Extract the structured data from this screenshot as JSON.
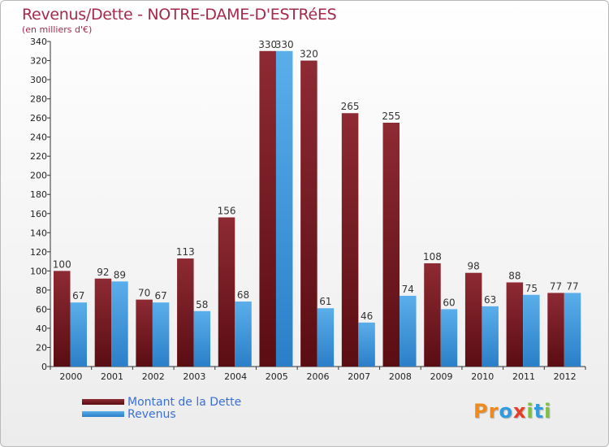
{
  "title": "Revenus/Dette - NOTRE-DAME-D'ESTRéES",
  "subtitle": "(en milliers d'€)",
  "colors": {
    "debt": "#7a1f26",
    "revenue": "#4a9fe0",
    "title": "#a5294b",
    "legend_text": "#3a6fd8"
  },
  "legend": {
    "debt_label": "Montant de la Dette",
    "revenue_label": "Revenus"
  },
  "logo": {
    "letters": [
      "P",
      "r",
      "o",
      "x",
      "i",
      "t",
      "i"
    ]
  },
  "chart_data": {
    "type": "bar",
    "title": "Revenus/Dette - NOTRE-DAME-D'ESTRéES",
    "ylabel": "(en milliers d'€)",
    "categories": [
      "2000",
      "2001",
      "2002",
      "2003",
      "2004",
      "2005",
      "2006",
      "2007",
      "2008",
      "2009",
      "2010",
      "2011",
      "2012"
    ],
    "series": [
      {
        "name": "Montant de la Dette",
        "values": [
          100,
          92,
          70,
          113,
          156,
          330,
          320,
          265,
          255,
          108,
          98,
          88,
          77
        ]
      },
      {
        "name": "Revenus",
        "values": [
          67,
          89,
          67,
          58,
          68,
          330,
          61,
          46,
          74,
          60,
          63,
          75,
          77
        ]
      }
    ],
    "ylim": [
      0,
      340
    ],
    "yticks": [
      0,
      20,
      40,
      60,
      80,
      100,
      120,
      140,
      160,
      180,
      200,
      220,
      240,
      260,
      280,
      300,
      320,
      340
    ],
    "grid": false
  }
}
